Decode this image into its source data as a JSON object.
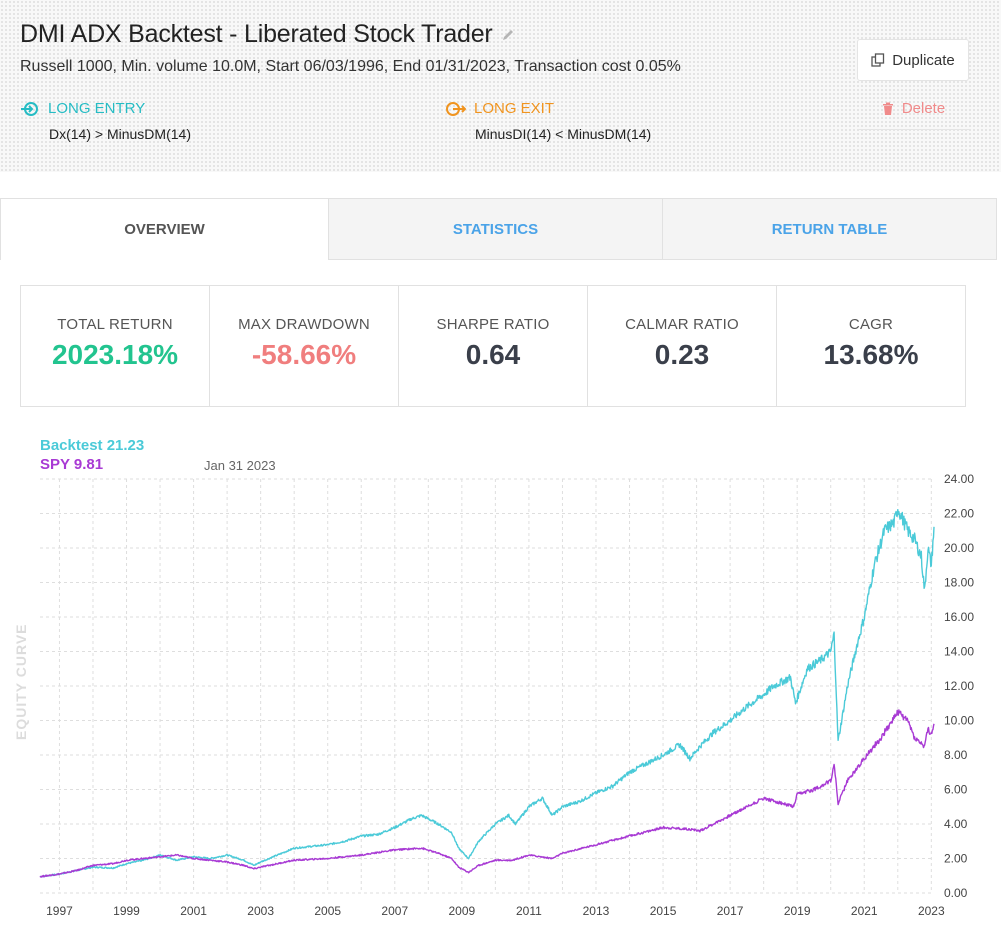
{
  "header": {
    "title": "DMI ADX Backtest - Liberated Stock Trader",
    "subtitle": "Russell 1000, Min. volume 10.0M, Start 06/03/1996, End 01/31/2023, Transaction cost 0.05%",
    "entry": {
      "label": "LONG ENTRY",
      "expr": "Dx(14) > MinusDM(14)"
    },
    "exit": {
      "label": "LONG EXIT",
      "expr": "MinusDI(14) < MinusDM(14)"
    },
    "buttons": {
      "duplicate": "Duplicate",
      "delete": "Delete"
    }
  },
  "tabs": [
    {
      "label": "OVERVIEW",
      "active": true
    },
    {
      "label": "STATISTICS",
      "active": false
    },
    {
      "label": "RETURN TABLE",
      "active": false
    }
  ],
  "stats": [
    {
      "label": "TOTAL RETURN",
      "value": "2023.18%"
    },
    {
      "label": "MAX DRAWDOWN",
      "value": "-58.66%"
    },
    {
      "label": "SHARPE RATIO",
      "value": "0.64"
    },
    {
      "label": "CALMAR RATIO",
      "value": "0.23"
    },
    {
      "label": "CAGR",
      "value": "13.68%"
    }
  ],
  "colors": {
    "backtest": "#4bcad8",
    "spy": "#a83ad4",
    "positive": "#22c48f",
    "negative": "#f07e7e",
    "tab_link": "#4aa3e8"
  },
  "chart_data": {
    "type": "line",
    "ylabel": "EQUITY CURVE",
    "date_label": "Jan 31 2023",
    "legend": {
      "backtest": "Backtest 21.23",
      "spy": "SPY 9.81"
    },
    "ylim": [
      0,
      24
    ],
    "y_ticks": [
      "0.00",
      "2.00",
      "4.00",
      "6.00",
      "8.00",
      "10.00",
      "12.00",
      "14.00",
      "16.00",
      "18.00",
      "20.00",
      "22.00",
      "24.00"
    ],
    "x_ticks": [
      "1997",
      "1999",
      "2001",
      "2003",
      "2005",
      "2007",
      "2009",
      "2011",
      "2013",
      "2015",
      "2017",
      "2019",
      "2021",
      "2023"
    ],
    "xlim": [
      1996.42,
      2023.08
    ],
    "series": [
      {
        "name": "Backtest",
        "x": [
          1996.42,
          1997.0,
          1997.5,
          1998.0,
          1998.6,
          1999.0,
          1999.5,
          2000.0,
          2000.5,
          2001.0,
          2001.5,
          2002.0,
          2002.5,
          2002.8,
          2003.0,
          2003.5,
          2004.0,
          2004.5,
          2005.0,
          2005.5,
          2006.0,
          2006.5,
          2007.0,
          2007.5,
          2007.8,
          2008.3,
          2008.7,
          2008.9,
          2009.2,
          2009.5,
          2010.0,
          2010.4,
          2010.6,
          2011.0,
          2011.4,
          2011.7,
          2012.0,
          2012.5,
          2013.0,
          2013.5,
          2014.0,
          2014.5,
          2015.0,
          2015.5,
          2015.8,
          2016.1,
          2016.5,
          2017.0,
          2017.5,
          2018.0,
          2018.3,
          2018.8,
          2018.95,
          2019.3,
          2019.7,
          2020.0,
          2020.1,
          2020.22,
          2020.5,
          2020.8,
          2021.0,
          2021.3,
          2021.6,
          2021.9,
          2022.0,
          2022.3,
          2022.5,
          2022.7,
          2022.8,
          2022.9,
          2023.0,
          2023.08
        ],
        "y": [
          0.95,
          1.1,
          1.3,
          1.5,
          1.45,
          1.7,
          1.9,
          2.2,
          1.9,
          2.1,
          2.0,
          2.2,
          1.9,
          1.6,
          1.8,
          2.2,
          2.6,
          2.7,
          2.8,
          3.0,
          3.3,
          3.4,
          3.8,
          4.3,
          4.5,
          4.0,
          3.5,
          2.6,
          2.0,
          3.0,
          4.0,
          4.5,
          4.0,
          5.0,
          5.5,
          4.5,
          5.0,
          5.3,
          5.8,
          6.2,
          7.0,
          7.5,
          8.0,
          8.6,
          7.8,
          8.5,
          9.3,
          10.0,
          10.8,
          11.5,
          12.0,
          12.5,
          11.0,
          13.0,
          13.5,
          14.0,
          15.0,
          8.8,
          12.0,
          14.5,
          16.0,
          19.0,
          21.0,
          21.5,
          22.3,
          21.0,
          20.5,
          19.5,
          17.5,
          20.0,
          19.0,
          21.23
        ]
      },
      {
        "name": "SPY",
        "x": [
          1996.42,
          1997.0,
          1997.5,
          1998.0,
          1998.6,
          1999.0,
          1999.5,
          2000.0,
          2000.5,
          2001.0,
          2001.5,
          2002.0,
          2002.5,
          2002.8,
          2003.0,
          2003.5,
          2004.0,
          2005.0,
          2006.0,
          2007.0,
          2007.8,
          2008.3,
          2008.7,
          2008.9,
          2009.2,
          2009.5,
          2010.0,
          2010.5,
          2011.0,
          2011.7,
          2012.0,
          2013.0,
          2014.0,
          2015.0,
          2015.8,
          2016.1,
          2016.5,
          2017.0,
          2018.0,
          2018.9,
          2019.0,
          2019.5,
          2020.0,
          2020.1,
          2020.22,
          2020.5,
          2021.0,
          2021.5,
          2022.0,
          2022.3,
          2022.5,
          2022.8,
          2022.9,
          2023.0,
          2023.08
        ],
        "y": [
          0.95,
          1.1,
          1.3,
          1.6,
          1.7,
          1.9,
          2.0,
          2.1,
          2.2,
          2.0,
          1.9,
          1.8,
          1.6,
          1.4,
          1.5,
          1.7,
          1.9,
          2.0,
          2.2,
          2.5,
          2.6,
          2.3,
          2.0,
          1.5,
          1.2,
          1.6,
          1.9,
          1.9,
          2.2,
          2.0,
          2.3,
          2.8,
          3.3,
          3.8,
          3.7,
          3.6,
          4.0,
          4.5,
          5.5,
          5.0,
          5.7,
          6.0,
          6.5,
          7.5,
          5.2,
          6.5,
          7.8,
          9.0,
          10.5,
          10.0,
          9.0,
          8.5,
          9.5,
          9.2,
          9.81
        ]
      }
    ]
  }
}
